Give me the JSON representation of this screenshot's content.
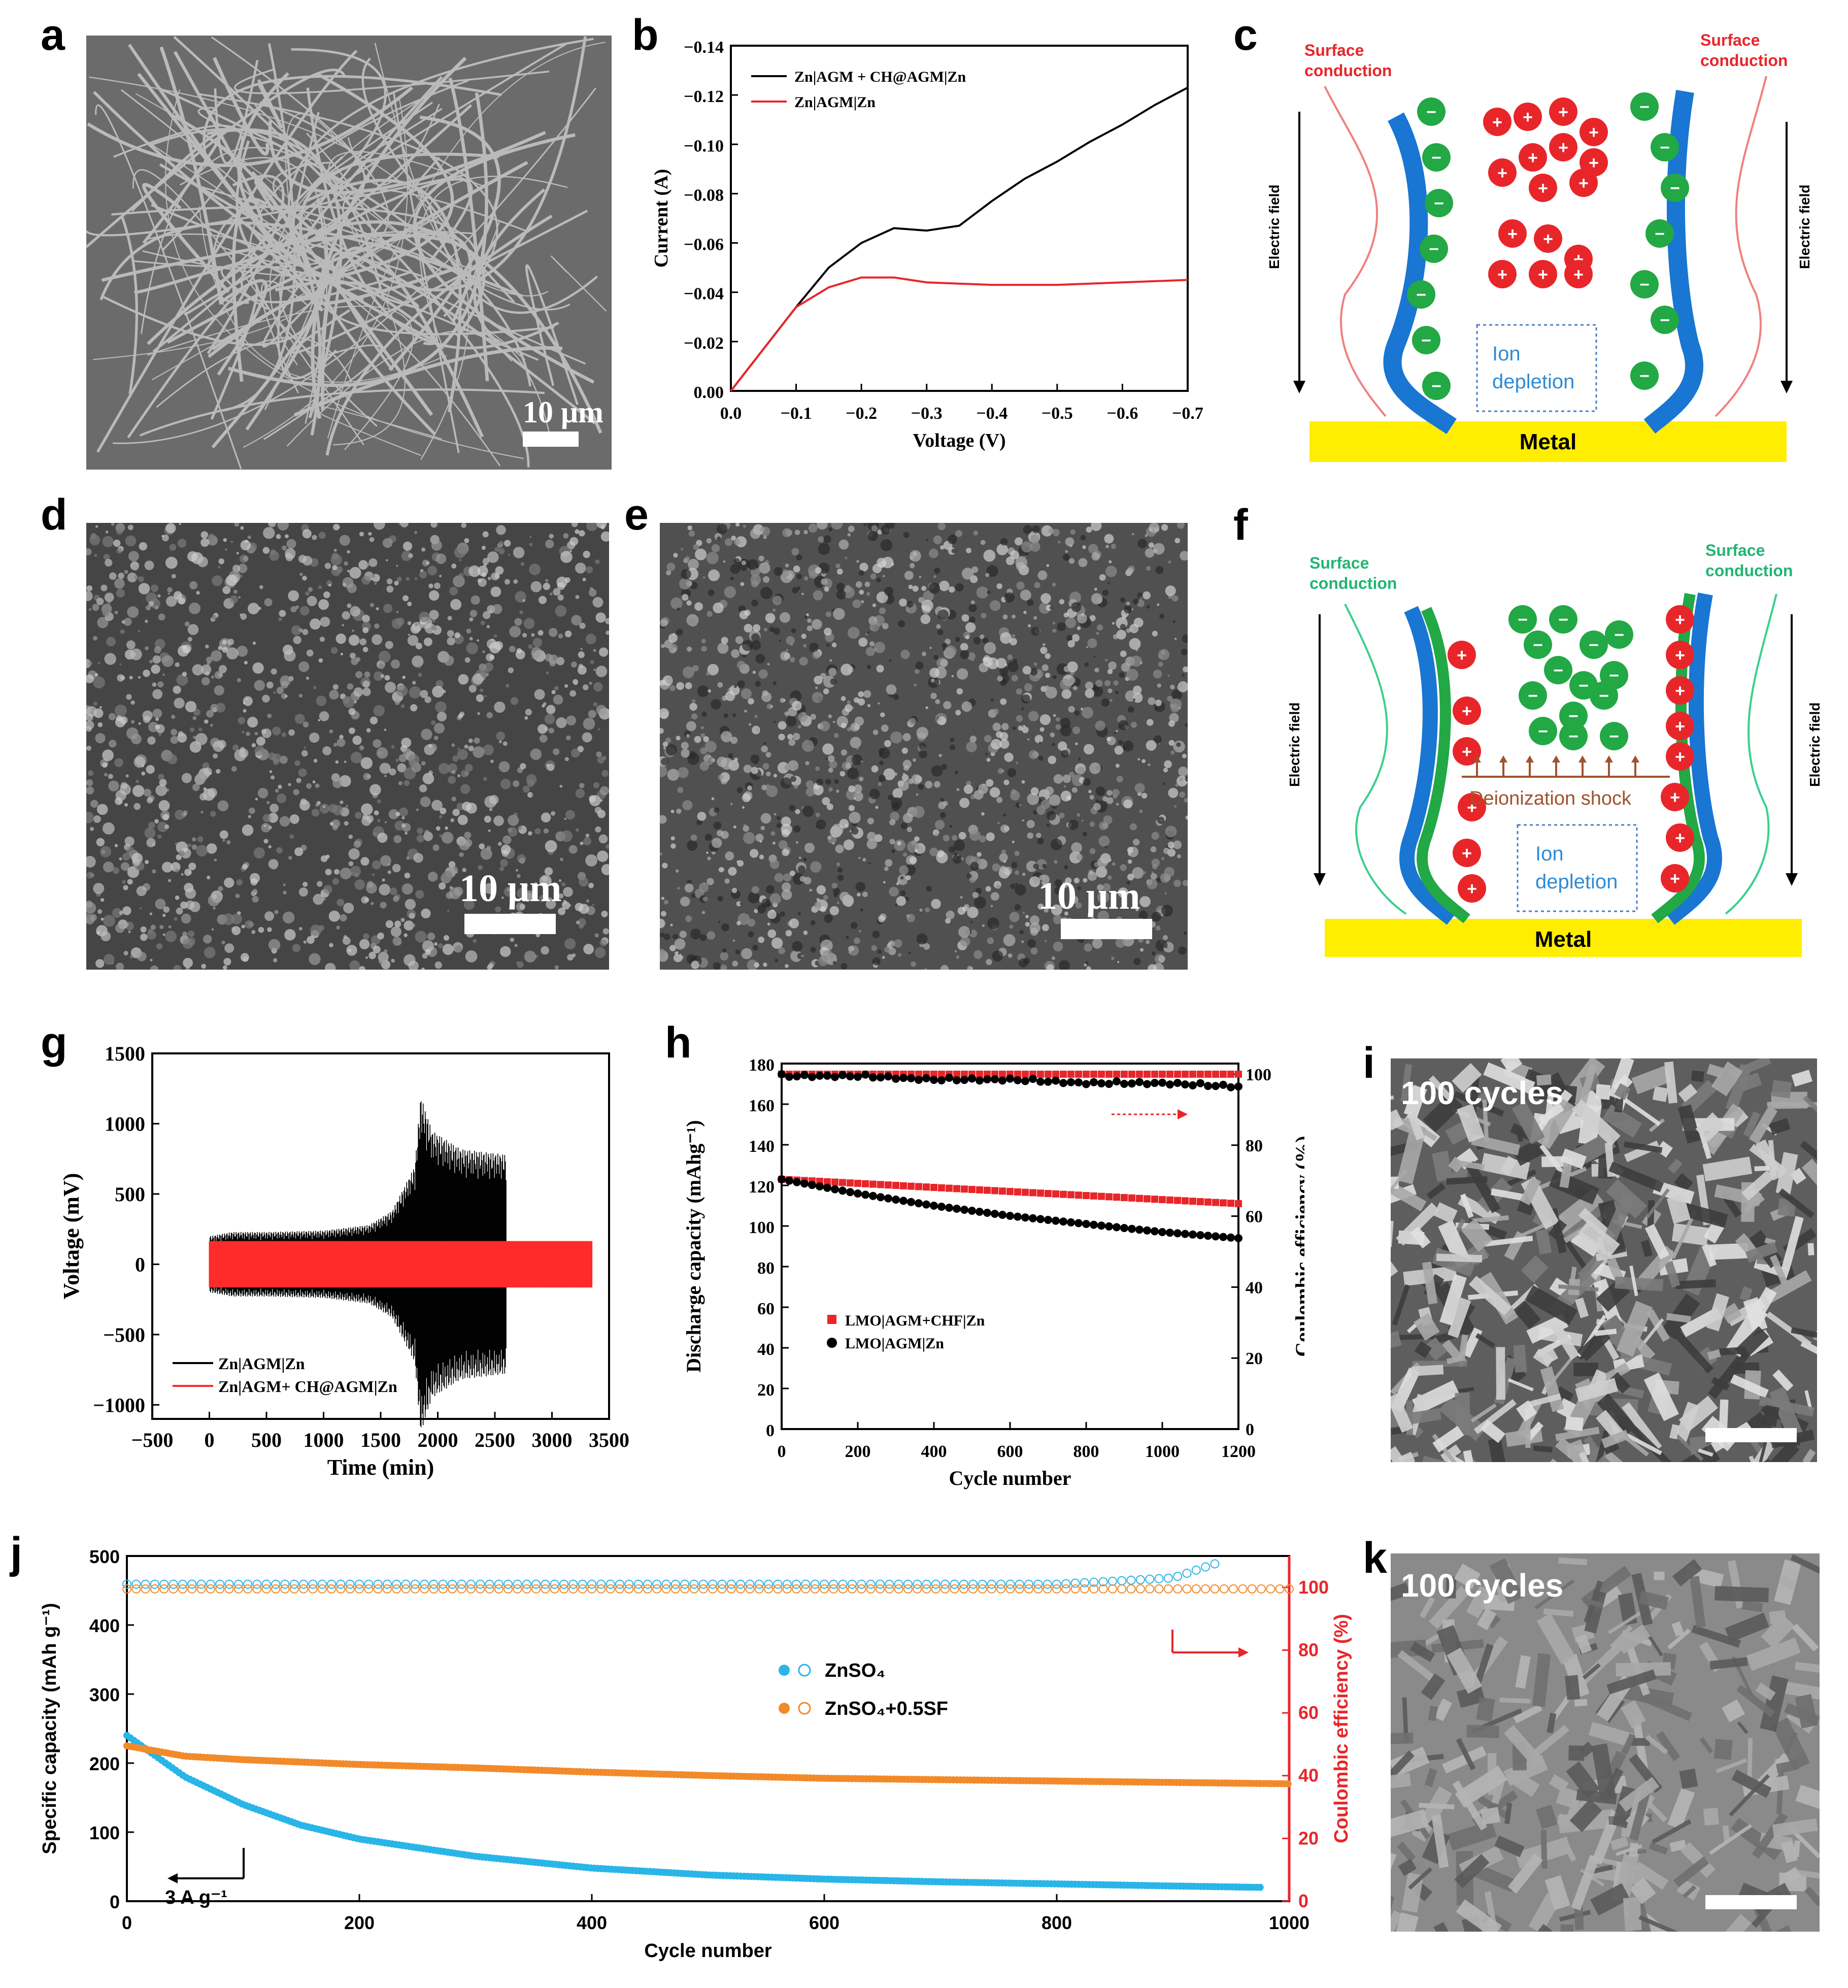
{
  "panels": {
    "a": "a",
    "b": "b",
    "c": "c",
    "d": "d",
    "e": "e",
    "f": "f",
    "g": "g",
    "h": "h",
    "i": "i",
    "j": "j",
    "k": "k"
  },
  "sem": {
    "a_scale": "10 μm",
    "d_scale": "10 μm",
    "e_scale": "10 μm",
    "i_label": "100 cycles",
    "k_label": "100 cycles"
  },
  "schematic_c": {
    "surface_left": [
      "Surface",
      "conduction"
    ],
    "surface_right": [
      "Surface",
      "conduction"
    ],
    "efield": "Electric field",
    "depletion": [
      "Ion",
      "depletion"
    ],
    "metal": "Metal",
    "accent": "#e8262a"
  },
  "schematic_f": {
    "surface_left": [
      "Surface",
      "conduction"
    ],
    "surface_right": [
      "Surface",
      "conduction"
    ],
    "efield": "Electric field",
    "shock": "Deionization shock",
    "depletion": [
      "Ion",
      "depletion"
    ],
    "metal": "Metal",
    "accent": "#22b573"
  },
  "chart_data": [
    {
      "id": "b",
      "type": "line",
      "xlabel": "Voltage (V)",
      "ylabel": "Current (A)",
      "xlim": [
        0.0,
        -0.7
      ],
      "ylim": [
        0.0,
        -0.14
      ],
      "xticks": [
        "0.0",
        "−0.1",
        "−0.2",
        "−0.3",
        "−0.4",
        "−0.5",
        "−0.6",
        "−0.7"
      ],
      "yticks": [
        "0.00",
        "−0.02",
        "−0.04",
        "−0.06",
        "−0.08",
        "−0.10",
        "−0.12",
        "−0.14"
      ],
      "series": [
        {
          "name": "Zn|AGM + CH@AGM|Zn",
          "color": "#000000",
          "x": [
            0,
            -0.05,
            -0.1,
            -0.15,
            -0.2,
            -0.25,
            -0.3,
            -0.35,
            -0.4,
            -0.45,
            -0.5,
            -0.55,
            -0.6,
            -0.65,
            -0.7
          ],
          "y": [
            0,
            -0.017,
            -0.034,
            -0.05,
            -0.06,
            -0.066,
            -0.065,
            -0.067,
            -0.077,
            -0.086,
            -0.093,
            -0.101,
            -0.108,
            -0.116,
            -0.123
          ]
        },
        {
          "name": "Zn|AGM|Zn",
          "color": "#e8262a",
          "x": [
            0,
            -0.05,
            -0.1,
            -0.15,
            -0.2,
            -0.25,
            -0.3,
            -0.4,
            -0.5,
            -0.6,
            -0.7
          ],
          "y": [
            0,
            -0.017,
            -0.034,
            -0.042,
            -0.046,
            -0.046,
            -0.044,
            -0.043,
            -0.043,
            -0.044,
            -0.045
          ]
        }
      ]
    },
    {
      "id": "g",
      "type": "line",
      "xlabel": "Time (min)",
      "ylabel": "Voltage (mV)",
      "xlim": [
        -500,
        3500
      ],
      "ylim": [
        -1100,
        1500
      ],
      "xticks": [
        "−500",
        "0",
        "500",
        "1000",
        "1500",
        "2000",
        "2500",
        "3000",
        "3500"
      ],
      "yticks": [
        "−1000",
        "−500",
        "0",
        "500",
        "1000",
        "1500"
      ],
      "series": [
        {
          "name": "Zn|AGM|Zn",
          "color": "#000000",
          "envelope_t": [
            0,
            200,
            500,
            1000,
            1400,
            1600,
            1800,
            1850,
            1950,
            2200,
            2600
          ],
          "envelope_v": [
            200,
            230,
            230,
            240,
            280,
            380,
            700,
            1200,
            950,
            820,
            780
          ]
        },
        {
          "name": "Zn|AGM+ CH@AGM|Zn",
          "color": "#ff2a2a",
          "envelope_t": [
            0,
            3350
          ],
          "envelope_v": [
            165,
            165
          ]
        }
      ]
    },
    {
      "id": "h",
      "type": "scatter",
      "xlabel": "Cycle number",
      "ylabel": "Discharge capacity (mAhg⁻¹)",
      "y2label": "Coulombic efficiency (%)",
      "xlim": [
        0,
        1200
      ],
      "ylim": [
        0,
        180
      ],
      "y2lim": [
        0,
        103
      ],
      "xticks": [
        "0",
        "200",
        "400",
        "600",
        "800",
        "1000",
        "1200"
      ],
      "yticks": [
        "0",
        "20",
        "40",
        "60",
        "80",
        "100",
        "120",
        "140",
        "160",
        "180"
      ],
      "y2ticks": [
        "0",
        "20",
        "40",
        "60",
        "80",
        "100"
      ],
      "series": [
        {
          "name": "LMO|AGM+CHF|Zn",
          "color": "#e8262a",
          "marker": "square",
          "x": [
            0,
            200,
            400,
            600,
            800,
            1000,
            1200
          ],
          "y": [
            123,
            121,
            119,
            117,
            115,
            113,
            111
          ],
          "ce": [
            100,
            100,
            100,
            100,
            100,
            100,
            100
          ]
        },
        {
          "name": "LMO|AGM|Zn",
          "color": "#000000",
          "marker": "circle",
          "x": [
            0,
            200,
            400,
            600,
            800,
            1000,
            1200
          ],
          "y": [
            123,
            116,
            110,
            105,
            101,
            97,
            94
          ],
          "ce": [
            100,
            100,
            99,
            99,
            98,
            98,
            97
          ]
        }
      ]
    },
    {
      "id": "j",
      "type": "scatter",
      "xlabel": "Cycle number",
      "ylabel": "Specific capacity (mAh g⁻¹)",
      "y2label": "Coulombic efficiency (%)",
      "xlim": [
        0,
        1000
      ],
      "ylim": [
        0,
        500
      ],
      "y2lim": [
        0,
        110
      ],
      "xticks": [
        "0",
        "200",
        "400",
        "600",
        "800",
        "1000"
      ],
      "yticks": [
        "0",
        "100",
        "200",
        "300",
        "400",
        "500"
      ],
      "y2ticks": [
        "0",
        "20",
        "40",
        "60",
        "80",
        "100"
      ],
      "annotation": "3 A g⁻¹",
      "series": [
        {
          "name": "ZnSO₄",
          "color": "#29b5e8",
          "x": [
            0,
            50,
            100,
            150,
            200,
            300,
            400,
            500,
            600,
            700,
            800,
            900,
            975
          ],
          "y": [
            240,
            180,
            140,
            110,
            90,
            65,
            48,
            38,
            32,
            28,
            25,
            22,
            20
          ],
          "ce_x": [
            0,
            200,
            400,
            600,
            800,
            900,
            940
          ],
          "ce": [
            101,
            101,
            101,
            101,
            101,
            103,
            108
          ]
        },
        {
          "name": "ZnSO₄+0.5SF",
          "color": "#f28a2a",
          "x": [
            0,
            50,
            100,
            200,
            300,
            400,
            500,
            600,
            700,
            800,
            900,
            1000
          ],
          "y": [
            225,
            210,
            205,
            198,
            193,
            187,
            182,
            178,
            176,
            174,
            172,
            170
          ],
          "ce_x": [
            0,
            1000
          ],
          "ce": [
            99.5,
            99.5
          ]
        }
      ]
    }
  ]
}
